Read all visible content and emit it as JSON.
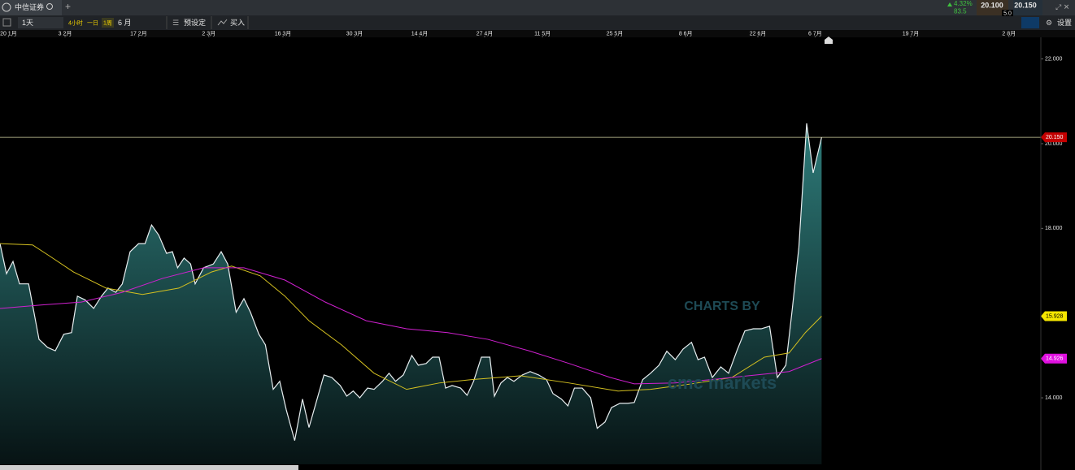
{
  "app": {
    "tab_title": "中信证券",
    "change": "4.32%",
    "volume": "83.5",
    "bid": "20.100",
    "spread": "5.0",
    "ask": "20.150"
  },
  "toolbar": {
    "interval": "1天",
    "quick": [
      "4小时",
      "一日",
      "1周"
    ],
    "range": "6 月",
    "presets": "预设定",
    "buy": "买入",
    "settings": "设置"
  },
  "watermark": {
    "line1": "CHARTS BY",
    "line2": "cmc markets"
  },
  "chart_data": {
    "type": "area",
    "xlim": [
      0,
      160
    ],
    "xticks": [
      {
        "value": 1.3,
        "label": "20 1月"
      },
      {
        "value": 10,
        "label": "3 2月"
      },
      {
        "value": 21.3,
        "label": "17 2月"
      },
      {
        "value": 32.1,
        "label": "2 3月"
      },
      {
        "value": 43.5,
        "label": "16 3月"
      },
      {
        "value": 54.5,
        "label": "30 3月"
      },
      {
        "value": 64.5,
        "label": "14 4月"
      },
      {
        "value": 74.5,
        "label": "27 4月"
      },
      {
        "value": 83.4,
        "label": "11 5月"
      },
      {
        "value": 94.5,
        "label": "25 5月"
      },
      {
        "value": 105.4,
        "label": "8 6月"
      },
      {
        "value": 116.5,
        "label": "22 6月"
      },
      {
        "value": 125.3,
        "label": "6 7月"
      },
      {
        "value": 140,
        "label": "19 7月"
      },
      {
        "value": 155.1,
        "label": "2 8月"
      }
    ],
    "ylim": [
      12.43,
      22.51
    ],
    "yticks": [
      {
        "value": 22,
        "label": "22.000"
      },
      {
        "value": 20,
        "label": "20.000"
      },
      {
        "value": 18,
        "label": "18.000"
      },
      {
        "value": 14,
        "label": "14.000"
      }
    ],
    "series": [
      {
        "color": "#e8eef0",
        "fill": "#2e7c7a",
        "label_color": "#c40000",
        "last_label": "20.150",
        "x": [
          0,
          1,
          2,
          3,
          4.4,
          6,
          7.3,
          8.5,
          9.8,
          11,
          11.9,
          13.1,
          14.4,
          15.6,
          16.6,
          17.8,
          18.8,
          20,
          21.3,
          22.3,
          23.3,
          24.4,
          25.6,
          26.5,
          27.3,
          28.3,
          29.3,
          30,
          31.3,
          32.8,
          34,
          35,
          36.3,
          37.5,
          38.5,
          39.8,
          40.8,
          42,
          43,
          44,
          45.3,
          46.5,
          47.5,
          48.8,
          49.8,
          51,
          52.3,
          53.3,
          54.3,
          55.3,
          56.5,
          57.5,
          58.8,
          59.8,
          60.8,
          62,
          63.3,
          64.3,
          65.5,
          66.5,
          67.5,
          68.5,
          69.5,
          70.8,
          71.8,
          72.8,
          74,
          75.3,
          76,
          77,
          78,
          79,
          80.3,
          81.5,
          82.8,
          84,
          85,
          86.3,
          87.3,
          88.3,
          89.5,
          90.8,
          91.8,
          93,
          94,
          95.3,
          96.5,
          97.5,
          98.8,
          100,
          101.3,
          102.5,
          103.8,
          105,
          106.3,
          107.3,
          108.3,
          109.5,
          110.8,
          112,
          113.3,
          114.5,
          115.8,
          117,
          118.3,
          119.5,
          120.8,
          121.8,
          122.8,
          124,
          125,
          126.3
        ],
        "values": [
          17.64,
          16.93,
          17.22,
          16.69,
          16.69,
          15.38,
          15.19,
          15.11,
          15.5,
          15.54,
          16.4,
          16.31,
          16.11,
          16.4,
          16.59,
          16.49,
          16.69,
          17.45,
          17.64,
          17.64,
          18.08,
          17.84,
          17.41,
          17.45,
          17.07,
          17.3,
          17.16,
          16.69,
          17.07,
          17.16,
          17.45,
          17.16,
          16.02,
          16.34,
          16.02,
          15.5,
          15.25,
          14.2,
          14.39,
          13.72,
          12.99,
          13.97,
          13.3,
          14,
          14.54,
          14.48,
          14.29,
          14.04,
          14.16,
          14,
          14.23,
          14.2,
          14.39,
          14.58,
          14.39,
          14.54,
          15,
          14.77,
          14.81,
          14.96,
          14.96,
          14.23,
          14.29,
          14.23,
          14.06,
          14.39,
          14.96,
          14.96,
          14.04,
          14.35,
          14.48,
          14.39,
          14.54,
          14.62,
          14.54,
          14.43,
          14.1,
          13.97,
          13.81,
          14.23,
          14.23,
          14,
          13.28,
          13.43,
          13.77,
          13.87,
          13.87,
          13.89,
          14.43,
          14.58,
          14.77,
          15.1,
          14.9,
          15.15,
          15.31,
          14.9,
          14.96,
          14.48,
          14.73,
          14.58,
          15.12,
          15.58,
          15.63,
          15.63,
          15.69,
          14.48,
          14.77,
          16.11,
          17.55,
          20.48,
          19.31,
          20.15
        ]
      },
      {
        "color": "#d4c020",
        "label_color": "#f5e600",
        "last_label": "15.928",
        "x": [
          0,
          5,
          7.5,
          11.3,
          16.3,
          21.9,
          27.5,
          32.5,
          35.6,
          40,
          43.8,
          47.5,
          52.5,
          57.5,
          62.5,
          67.5,
          72.5,
          80,
          87.5,
          95,
          100,
          106.3,
          112.5,
          117.5,
          121.3,
          123.8,
          126.3
        ],
        "values": [
          17.64,
          17.61,
          17.36,
          16.97,
          16.59,
          16.44,
          16.59,
          16.97,
          17.11,
          16.88,
          16.4,
          15.82,
          15.25,
          14.58,
          14.2,
          14.35,
          14.43,
          14.52,
          14.35,
          14.16,
          14.2,
          14.33,
          14.48,
          14.96,
          15.06,
          15.54,
          15.928
        ]
      },
      {
        "color": "#d020d0",
        "label_color": "#e010e0",
        "last_label": "14.926",
        "x": [
          0,
          6.3,
          12.5,
          18.8,
          25,
          31.3,
          37.5,
          43.8,
          50,
          56.3,
          62.5,
          68.8,
          75,
          81.3,
          87.5,
          93.8,
          97.5,
          103.8,
          110,
          116.3,
          121.3,
          126.3
        ],
        "values": [
          16.11,
          16.19,
          16.26,
          16.49,
          16.82,
          17.07,
          17.07,
          16.78,
          16.26,
          15.82,
          15.63,
          15.54,
          15.38,
          15.11,
          14.81,
          14.48,
          14.33,
          14.35,
          14.44,
          14.54,
          14.62,
          14.926
        ]
      }
    ]
  }
}
